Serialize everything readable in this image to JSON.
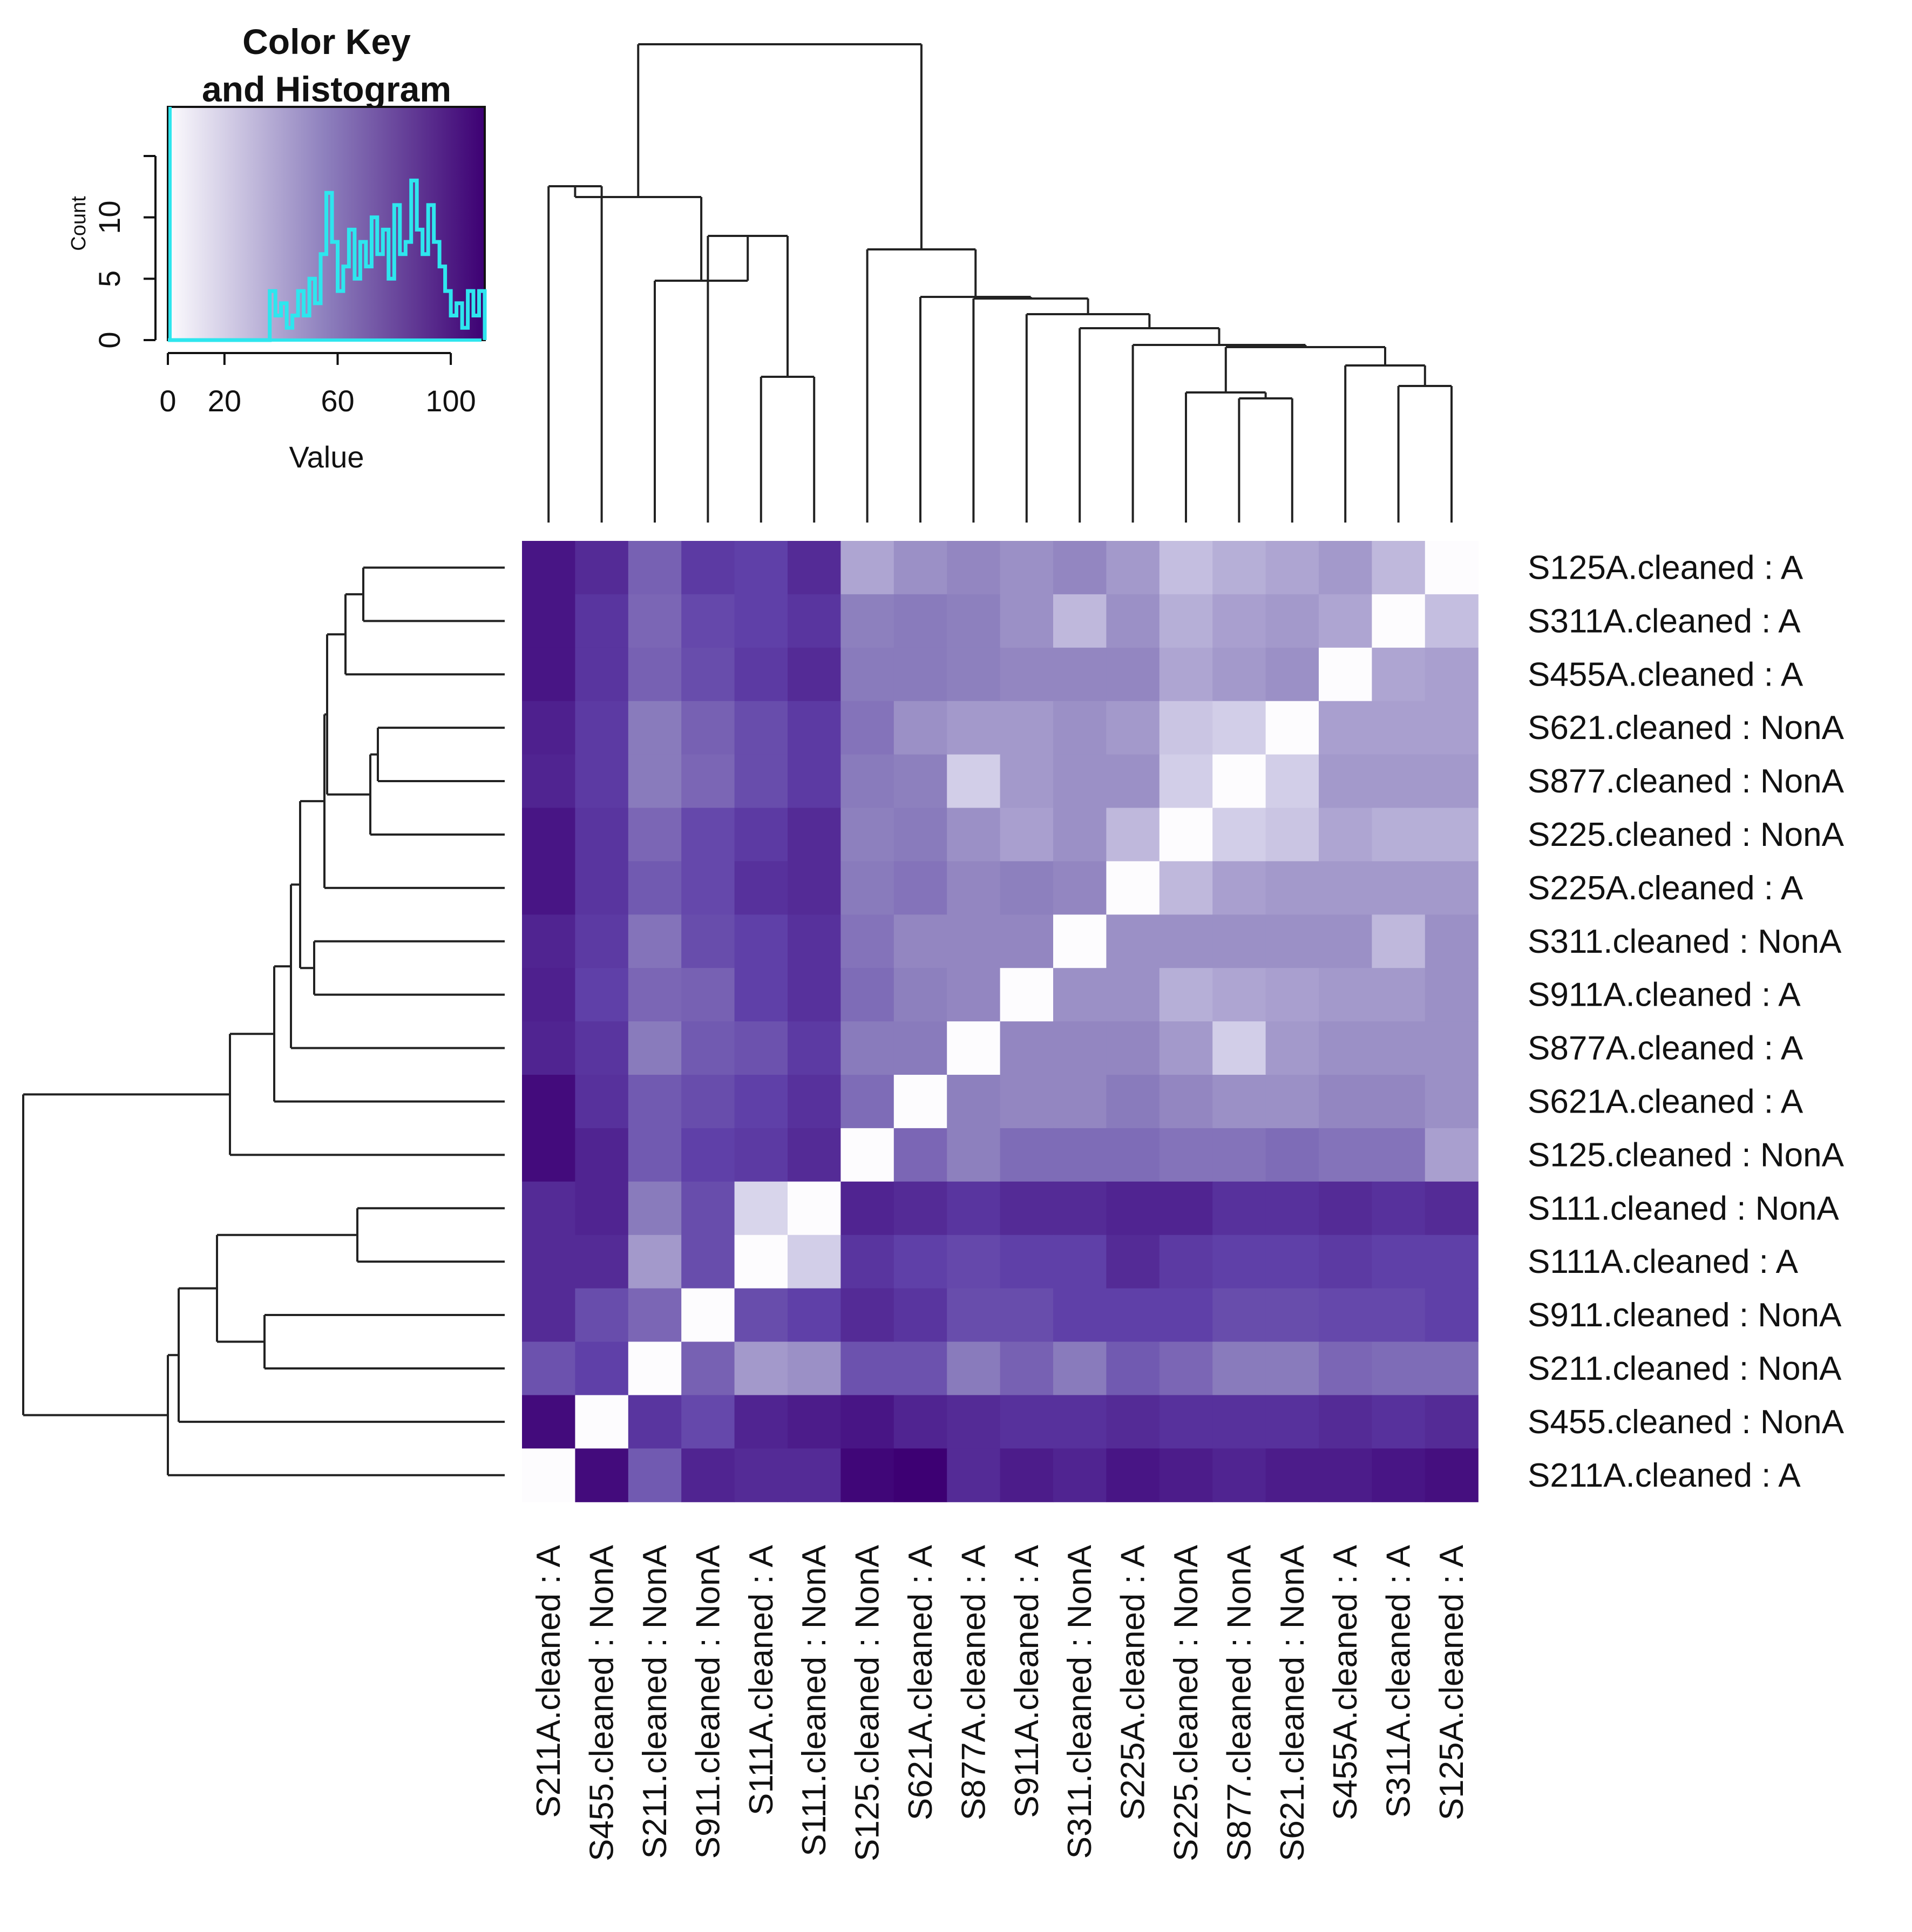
{
  "chart_data": {
    "type": "heatmap",
    "color_key": {
      "title_line1": "Color Key",
      "title_line2": "and Histogram",
      "xlabel": "Value",
      "ylabel": "Count",
      "x_ticks": [
        "0",
        "20",
        "60",
        "100"
      ],
      "x_tick_values": [
        0,
        20,
        60,
        100
      ],
      "x_range": [
        0,
        112
      ],
      "y_ticks": [
        "0",
        "5",
        "10"
      ],
      "y_tick_values": [
        0,
        5,
        10
      ],
      "y_range": [
        0,
        19
      ],
      "low_color": "#fdfcfe",
      "high_color": "#3d0073",
      "histogram_color": "#2ee6ee",
      "histogram": [
        [
          36,
          4
        ],
        [
          38,
          2
        ],
        [
          40,
          3
        ],
        [
          42,
          1
        ],
        [
          44,
          2
        ],
        [
          46,
          4
        ],
        [
          48,
          2
        ],
        [
          50,
          5
        ],
        [
          52,
          3
        ],
        [
          54,
          7
        ],
        [
          56,
          12
        ],
        [
          58,
          8
        ],
        [
          60,
          4
        ],
        [
          62,
          6
        ],
        [
          64,
          9
        ],
        [
          66,
          5
        ],
        [
          68,
          8
        ],
        [
          70,
          6
        ],
        [
          72,
          10
        ],
        [
          74,
          7
        ],
        [
          76,
          9
        ],
        [
          78,
          5
        ],
        [
          80,
          11
        ],
        [
          82,
          7
        ],
        [
          84,
          8
        ],
        [
          86,
          13
        ],
        [
          88,
          9
        ],
        [
          90,
          7
        ],
        [
          92,
          11
        ],
        [
          94,
          8
        ],
        [
          96,
          6
        ],
        [
          98,
          4
        ],
        [
          100,
          2
        ],
        [
          102,
          3
        ],
        [
          104,
          1
        ],
        [
          106,
          4
        ],
        [
          108,
          2
        ],
        [
          110,
          4
        ]
      ]
    },
    "rows": [
      "S125A.cleaned : A",
      "S311A.cleaned : A",
      "S455A.cleaned : A",
      "S621.cleaned : NonA",
      "S877.cleaned : NonA",
      "S225.cleaned : NonA",
      "S225A.cleaned : A",
      "S311.cleaned : NonA",
      "S911A.cleaned : A",
      "S877A.cleaned : A",
      "S621A.cleaned : A",
      "S125.cleaned : NonA",
      "S111.cleaned : NonA",
      "S111A.cleaned : A",
      "S911.cleaned : NonA",
      "S211.cleaned : NonA",
      "S455.cleaned : NonA",
      "S211A.cleaned : A"
    ],
    "columns": [
      "S211A.cleaned : A",
      "S455.cleaned : NonA",
      "S211.cleaned : NonA",
      "S911.cleaned : NonA",
      "S111A.cleaned : A",
      "S111.cleaned : NonA",
      "S125.cleaned : NonA",
      "S621A.cleaned : A",
      "S877A.cleaned : A",
      "S911A.cleaned : A",
      "S311.cleaned : NonA",
      "S225A.cleaned : A",
      "S225.cleaned : NonA",
      "S877.cleaned : NonA",
      "S621.cleaned : NonA",
      "S455A.cleaned : A",
      "S311A.cleaned : A",
      "S125A.cleaned : A"
    ],
    "values": [
      [
        105,
        95,
        72,
        88,
        85,
        95,
        48,
        55,
        58,
        55,
        58,
        52,
        40,
        45,
        48,
        52,
        42,
        0
      ],
      [
        105,
        90,
        70,
        82,
        85,
        90,
        60,
        62,
        60,
        55,
        42,
        55,
        45,
        50,
        52,
        48,
        0,
        40
      ],
      [
        105,
        90,
        72,
        80,
        88,
        95,
        62,
        62,
        60,
        58,
        58,
        58,
        48,
        52,
        55,
        0,
        48,
        50
      ],
      [
        100,
        88,
        62,
        72,
        80,
        88,
        65,
        55,
        52,
        52,
        55,
        52,
        38,
        35,
        0,
        50,
        50,
        50
      ],
      [
        98,
        88,
        62,
        70,
        80,
        88,
        62,
        60,
        35,
        52,
        55,
        55,
        35,
        0,
        35,
        52,
        52,
        52
      ],
      [
        105,
        90,
        70,
        82,
        88,
        95,
        60,
        62,
        55,
        50,
        55,
        42,
        0,
        35,
        38,
        48,
        45,
        45
      ],
      [
        105,
        90,
        75,
        82,
        92,
        95,
        62,
        65,
        58,
        60,
        58,
        0,
        42,
        50,
        52,
        52,
        52,
        52
      ],
      [
        98,
        88,
        65,
        80,
        85,
        92,
        65,
        58,
        58,
        58,
        0,
        55,
        55,
        55,
        55,
        55,
        42,
        55
      ],
      [
        100,
        85,
        70,
        72,
        85,
        92,
        68,
        60,
        58,
        0,
        55,
        55,
        45,
        48,
        50,
        52,
        52,
        55
      ],
      [
        98,
        90,
        62,
        75,
        78,
        88,
        62,
        62,
        0,
        58,
        58,
        58,
        52,
        35,
        52,
        55,
        55,
        55
      ],
      [
        110,
        92,
        75,
        80,
        85,
        92,
        68,
        0,
        60,
        58,
        58,
        62,
        58,
        55,
        55,
        58,
        58,
        55
      ],
      [
        110,
        98,
        75,
        85,
        88,
        95,
        0,
        70,
        60,
        68,
        68,
        68,
        65,
        65,
        68,
        65,
        65,
        50
      ],
      [
        95,
        98,
        62,
        80,
        30,
        0,
        98,
        95,
        90,
        95,
        95,
        98,
        98,
        92,
        92,
        95,
        92,
        95
      ],
      [
        95,
        95,
        52,
        80,
        0,
        35,
        90,
        85,
        82,
        85,
        85,
        95,
        88,
        85,
        85,
        88,
        85,
        85
      ],
      [
        95,
        80,
        70,
        0,
        80,
        85,
        95,
        90,
        80,
        80,
        85,
        85,
        85,
        80,
        80,
        82,
        82,
        85
      ],
      [
        78,
        85,
        0,
        72,
        52,
        55,
        78,
        78,
        62,
        72,
        62,
        75,
        70,
        62,
        62,
        70,
        68,
        68
      ],
      [
        110,
        0,
        90,
        82,
        98,
        102,
        105,
        98,
        95,
        92,
        92,
        95,
        92,
        92,
        92,
        95,
        92,
        95
      ],
      [
        0,
        110,
        75,
        98,
        95,
        95,
        112,
        115,
        95,
        102,
        98,
        105,
        102,
        98,
        102,
        102,
        105,
        108
      ]
    ]
  }
}
